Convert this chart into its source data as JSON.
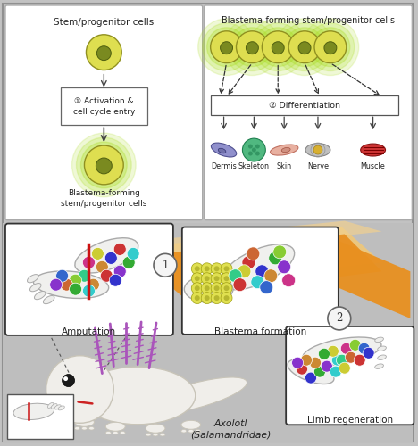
{
  "bg_color": "#c2c2c2",
  "panel_bg": "#ffffff",
  "panel_A_title": "Stem/progenitor cells",
  "panel_A_box_text": "① Activation &\ncell cycle entry",
  "panel_A_bottom_text": "Blastema-forming\nstem/progenitor cells",
  "panel_B_title": "Blastema-forming stem/progenitor cells",
  "panel_B_diff_text": "② Differentiation",
  "panel_B_labels": [
    "Dermis",
    "Skeleton",
    "Skin",
    "Nerve",
    "Muscle"
  ],
  "cell_yellow": "#dede50",
  "cell_yellow_light": "#eeee80",
  "cell_nucleus": "#7a8a20",
  "cell_glow": "#b8d840",
  "axolotl_label": "Axolotl\n(Salamandridae)",
  "box1_label": "Amputation",
  "box2_label": "Blastema formation",
  "box3_label": "Limb regeneration",
  "orange1": "#e89020",
  "orange2": "#f0a840",
  "circle_bg": "#f0f0f0",
  "dot_colors": [
    "#cc3333",
    "#3333cc",
    "#33aa33",
    "#cc8833",
    "#8833cc",
    "#33cccc",
    "#cccc33",
    "#cc3388",
    "#33cc88",
    "#88cc33",
    "#cc6633",
    "#3366cc"
  ]
}
